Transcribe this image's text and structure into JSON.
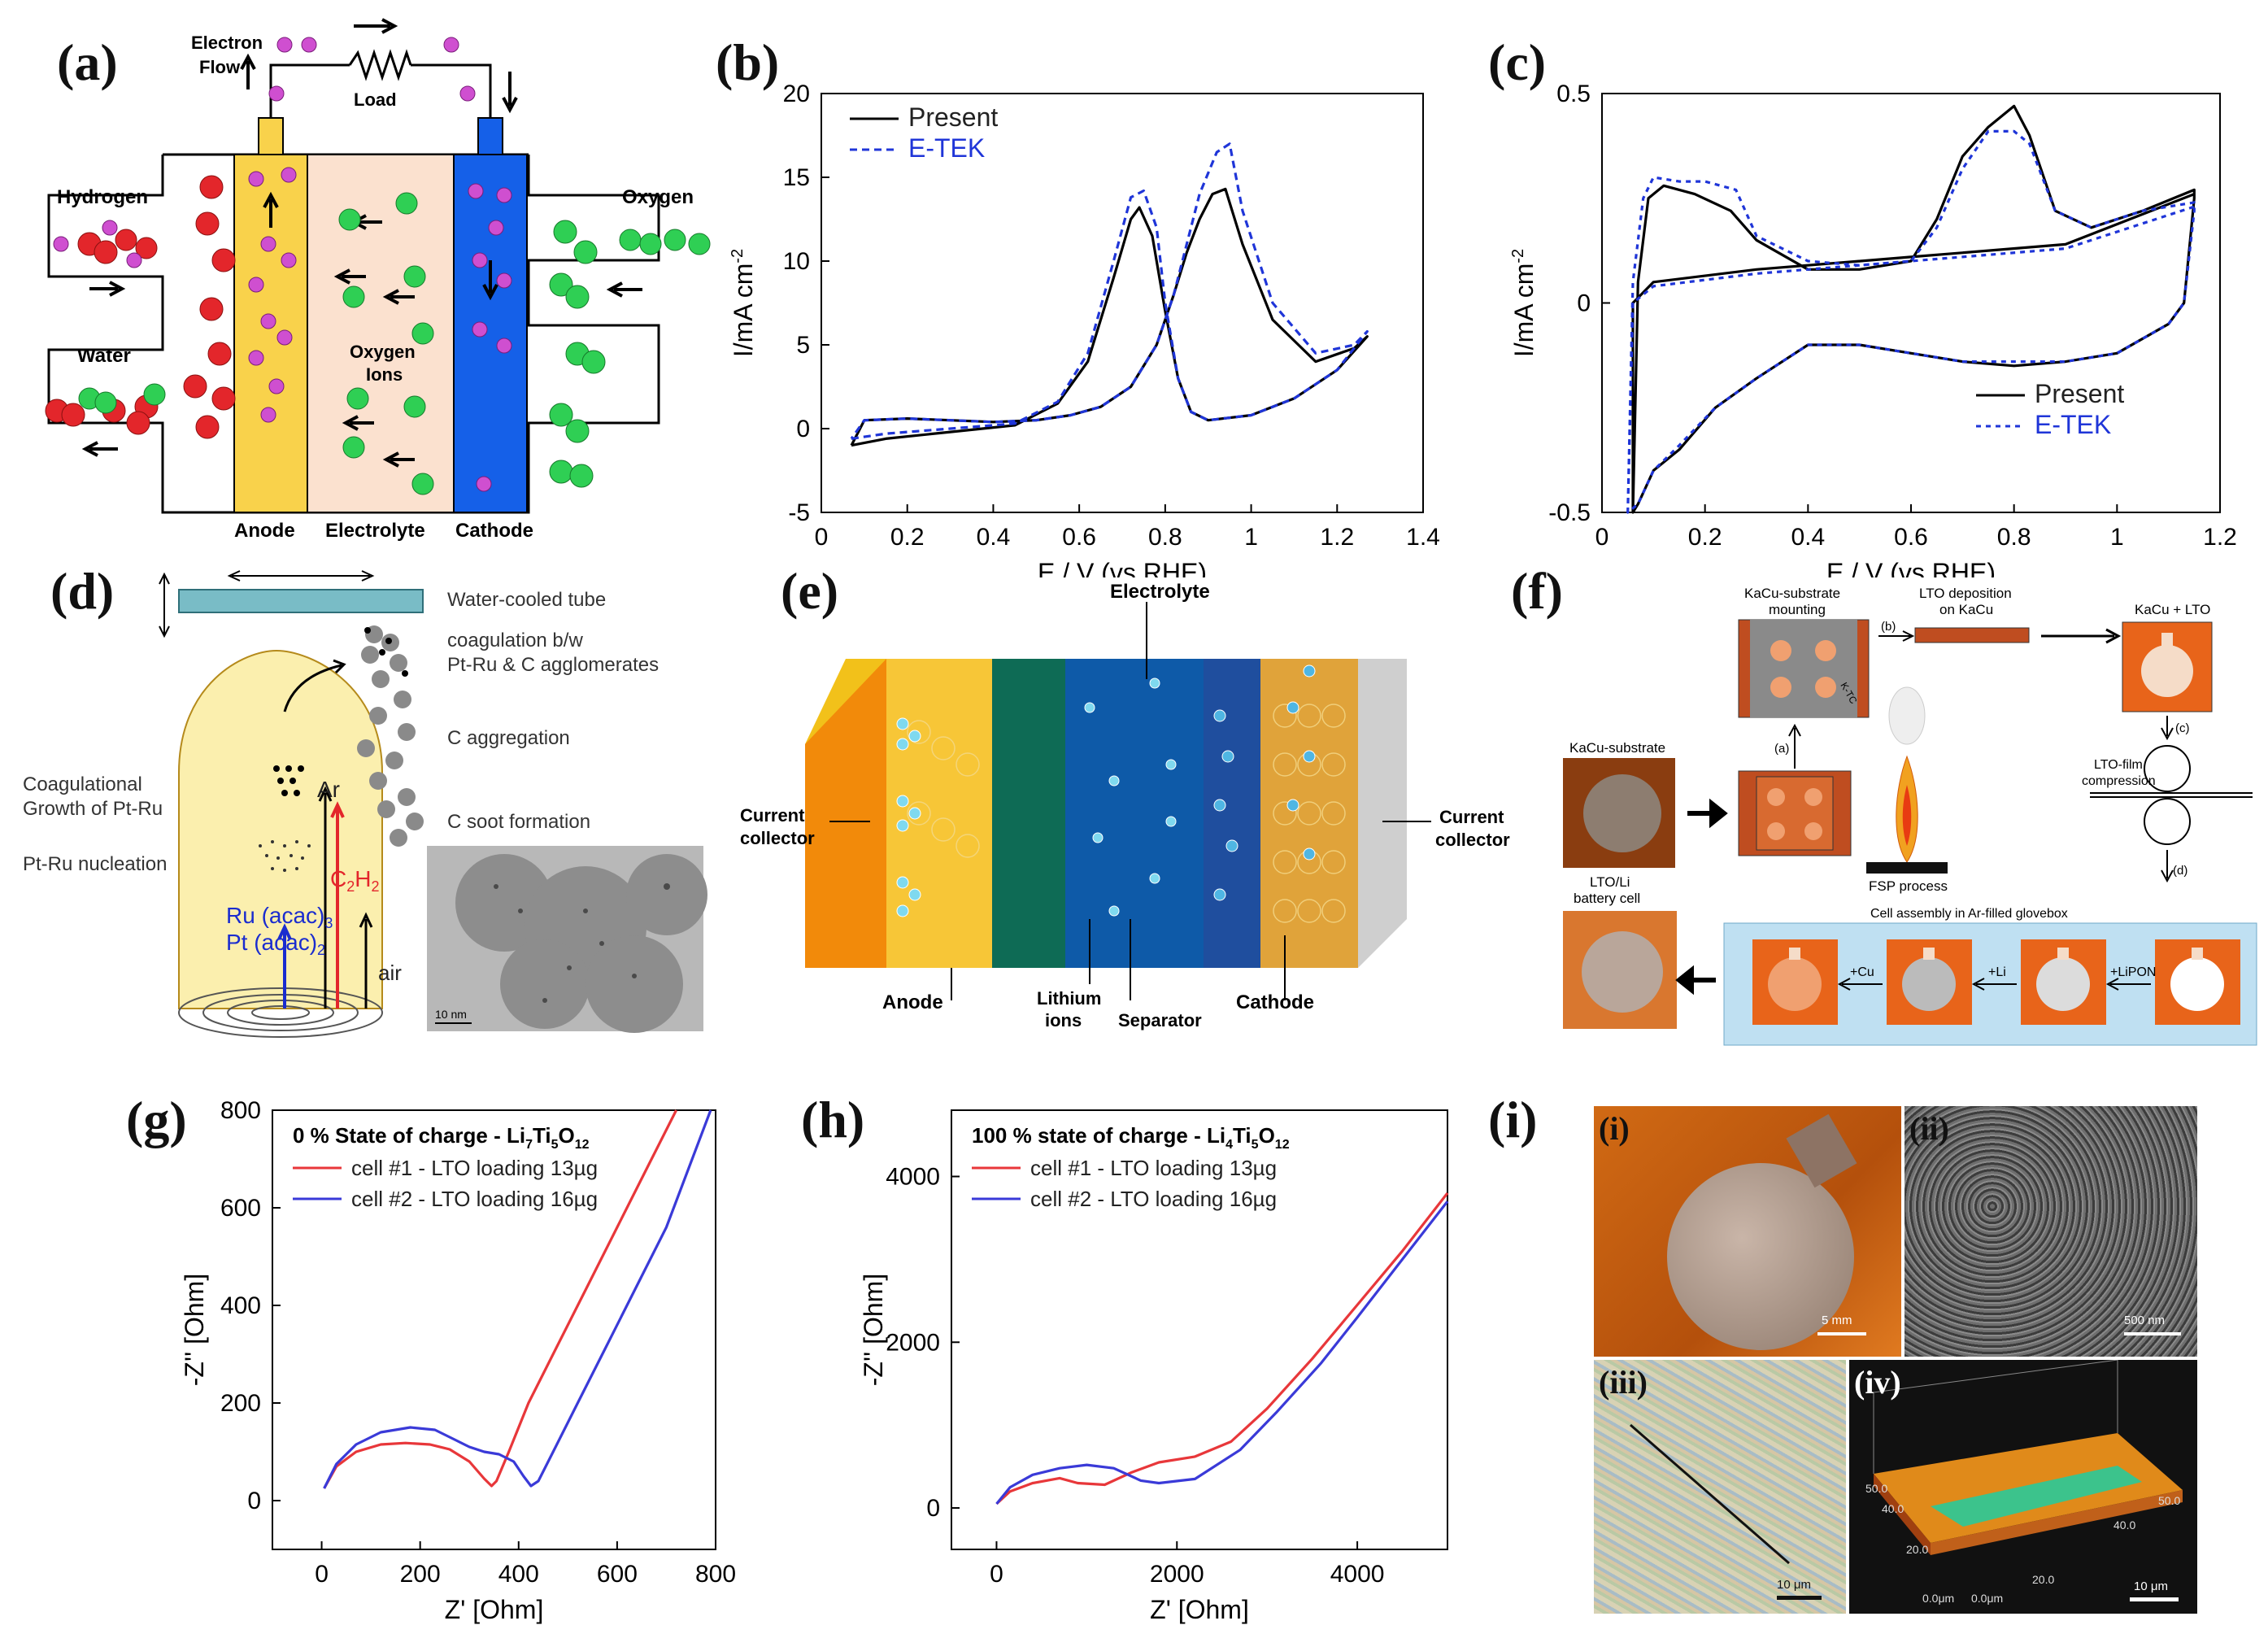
{
  "labels": {
    "a": "(a)",
    "b": "(b)",
    "c": "(c)",
    "d": "(d)",
    "e": "(e)",
    "f": "(f)",
    "g": "(g)",
    "h": "(h)",
    "i": "(i)"
  },
  "panel_a": {
    "electron_flow_1": "Electron",
    "electron_flow_2": "Flow",
    "load": "Load",
    "hydrogen": "Hydrogen",
    "oxygen": "Oxygen",
    "water": "Water",
    "oxygen_ions_1": "Oxygen",
    "oxygen_ions_2": "Ions",
    "anode": "Anode",
    "electrolyte": "Electrolyte",
    "cathode": "Cathode",
    "colors": {
      "anode": "#f9d24b",
      "electrolyte": "#fbe1cf",
      "cathode": "#1560e8",
      "h2": "#e3262b",
      "o2": "#2fcf54",
      "ion": "#cf4fd0"
    }
  },
  "panel_d": {
    "tube": "Water-cooled tube",
    "coag1": "coagulation b/w",
    "coag2": "Pt-Ru & C agglomerates",
    "c_agg": "C aggregation",
    "c_soot": "C soot formation",
    "growth1": "Coagulational",
    "growth2": "Growth of Pt-Ru",
    "nucleation": "Pt-Ru nucleation",
    "ar": "Ar",
    "c2h2": "C",
    "c2h2_sub": "2",
    "c2h2_h": "H",
    "c2h2_sub2": "2",
    "ru": "Ru (acac)",
    "ru_sub": "3",
    "pt": "Pt (acac)",
    "pt_sub": "2",
    "air": "air",
    "scale": "10 nm"
  },
  "panel_e": {
    "electrolyte": "Electrolyte",
    "cc_left_1": "Current",
    "cc_left_2": "collector",
    "cc_right_1": "Current",
    "cc_right_2": "collector",
    "anode": "Anode",
    "li_ions_1": "Lithium",
    "li_ions_2": "ions",
    "separator": "Separator",
    "cathode": "Cathode"
  },
  "panel_f": {
    "mounting_1": "KaCu-substrate",
    "mounting_2": "mounting",
    "lto_dep_1": "LTO deposition",
    "lto_dep_2": "on KaCu",
    "kacu_lto": "KaCu + LTO",
    "kacu_sub": "KaCu-substrate",
    "step_a": "(a)",
    "step_b": "(b)",
    "step_c": "(c)",
    "step_d": "(d)",
    "compress_1": "LTO-film",
    "compress_2": "compression",
    "fsp": "FSP process",
    "cell_1": "LTO/Li",
    "cell_2": "battery cell",
    "glovebox": "Cell assembly in Ar-filled glovebox",
    "cu": "+Cu",
    "li": "+Li",
    "lipon": "+LiPON",
    "tc": "K-TC"
  },
  "panel_i": {
    "sub_i": "(i)",
    "sub_ii": "(ii)",
    "sub_iii": "(iii)",
    "sub_iv": "(iv)",
    "scale_i": "5 mm",
    "scale_ii": "500 nm",
    "scale_iii": "10 μm",
    "scale_iv": "10 μm",
    "axis_iv_1": "50.0",
    "axis_iv_2": "40.0",
    "axis_iv_3": "20.0",
    "axis_iv_4": "0.0μm",
    "axis_iv_5": "0.0μm",
    "axis_iv_6": "20.0",
    "axis_iv_7": "40.0",
    "axis_iv_8": "50.0"
  },
  "chart_data": [
    {
      "id": "b",
      "type": "line",
      "title": "",
      "xlabel": "E / V (vs RHE)",
      "ylabel": "I/mA cm",
      "ylabel_sup": "-2",
      "xlim": [
        0,
        1.4
      ],
      "ylim": [
        -5,
        20
      ],
      "xticks": [
        0,
        0.2,
        0.4,
        0.6,
        0.8,
        1,
        1.2,
        1.4
      ],
      "xtick_labels": [
        "0",
        "0.2",
        "0.4",
        "0.6",
        "0.8",
        "1",
        "1.2",
        "1.4"
      ],
      "yticks": [
        -5,
        0,
        5,
        10,
        15,
        20
      ],
      "ytick_labels": [
        "-5",
        "0",
        "5",
        "10",
        "15",
        "20"
      ],
      "legend": "top-left",
      "series": [
        {
          "name": "Present",
          "color": "#000000",
          "dash": "",
          "x": [
            0.07,
            0.15,
            0.3,
            0.45,
            0.55,
            0.62,
            0.68,
            0.72,
            0.74,
            0.77,
            0.8,
            0.83,
            0.86,
            0.9,
            1.0,
            1.1,
            1.2,
            1.27,
            1.24,
            1.15,
            1.05,
            0.98,
            0.94,
            0.91,
            0.88,
            0.85,
            0.82,
            0.78,
            0.72,
            0.65,
            0.58,
            0.5,
            0.4,
            0.3,
            0.2,
            0.1,
            0.07
          ],
          "y": [
            -1,
            -0.6,
            -0.2,
            0.2,
            1.5,
            4,
            9,
            12.5,
            13.2,
            11.5,
            7,
            3,
            1,
            0.5,
            0.8,
            1.8,
            3.5,
            5.5,
            4.8,
            4,
            6.5,
            11,
            14.3,
            14,
            12.5,
            10.5,
            8,
            5,
            2.5,
            1.3,
            0.8,
            0.5,
            0.4,
            0.5,
            0.6,
            0.5,
            -1
          ]
        },
        {
          "name": "E-TEK",
          "color": "#1f35d8",
          "dash": "9,6",
          "x": [
            0.07,
            0.15,
            0.3,
            0.45,
            0.55,
            0.62,
            0.68,
            0.72,
            0.75,
            0.78,
            0.8,
            0.83,
            0.86,
            0.9,
            1.0,
            1.1,
            1.2,
            1.27,
            1.24,
            1.15,
            1.05,
            0.98,
            0.95,
            0.92,
            0.88,
            0.85,
            0.82,
            0.78,
            0.72,
            0.65,
            0.58,
            0.5,
            0.4,
            0.3,
            0.2,
            0.1,
            0.07
          ],
          "y": [
            -0.6,
            -0.3,
            0,
            0.3,
            1.6,
            4.5,
            10,
            13.8,
            14.2,
            12,
            7.5,
            3,
            1,
            0.5,
            0.8,
            1.8,
            3.5,
            5.8,
            5,
            4.5,
            7.5,
            13,
            17,
            16.5,
            14,
            11,
            8,
            5,
            2.5,
            1.3,
            0.8,
            0.5,
            0.4,
            0.5,
            0.6,
            0.5,
            -0.6
          ]
        }
      ]
    },
    {
      "id": "c",
      "type": "line",
      "title": "",
      "xlabel": "E / V (vs RHE)",
      "ylabel": "I/mA cm",
      "ylabel_sup": "-2",
      "xlim": [
        0,
        1.2
      ],
      "ylim": [
        -0.5,
        0.5
      ],
      "xticks": [
        0,
        0.2,
        0.4,
        0.6,
        0.8,
        1,
        1.2
      ],
      "xtick_labels": [
        "0",
        "0.2",
        "0.4",
        "0.6",
        "0.8",
        "1",
        "1.2"
      ],
      "yticks": [
        -0.5,
        0,
        0.5
      ],
      "ytick_labels": [
        "-0.5",
        "0",
        "0.5"
      ],
      "legend": "bottom-right",
      "series": [
        {
          "name": "Present",
          "color": "#000000",
          "dash": "",
          "x": [
            0.06,
            0.07,
            0.09,
            0.12,
            0.18,
            0.25,
            0.3,
            0.4,
            0.5,
            0.6,
            0.65,
            0.7,
            0.75,
            0.8,
            0.83,
            0.88,
            0.95,
            1.05,
            1.15,
            1.15,
            1.13,
            1.1,
            1.0,
            0.9,
            0.8,
            0.7,
            0.6,
            0.5,
            0.4,
            0.3,
            0.22,
            0.15,
            0.1,
            0.07,
            0.06,
            0.06,
            0.1,
            0.3,
            0.6,
            0.9,
            1.15
          ],
          "y": [
            -0.5,
            0.05,
            0.25,
            0.28,
            0.26,
            0.22,
            0.15,
            0.08,
            0.08,
            0.1,
            0.2,
            0.35,
            0.42,
            0.47,
            0.4,
            0.22,
            0.18,
            0.22,
            0.27,
            0.25,
            0.0,
            -0.05,
            -0.12,
            -0.14,
            -0.15,
            -0.14,
            -0.12,
            -0.1,
            -0.1,
            -0.18,
            -0.25,
            -0.35,
            -0.4,
            -0.48,
            -0.5,
            0.0,
            0.05,
            0.08,
            0.11,
            0.14,
            0.26
          ]
        },
        {
          "name": "E-TEK",
          "color": "#1f35d8",
          "dash": "6,6",
          "x": [
            0.05,
            0.06,
            0.08,
            0.1,
            0.15,
            0.2,
            0.26,
            0.3,
            0.4,
            0.5,
            0.6,
            0.65,
            0.7,
            0.75,
            0.8,
            0.83,
            0.88,
            0.95,
            1.05,
            1.15,
            1.15,
            1.13,
            1.1,
            1.0,
            0.9,
            0.8,
            0.7,
            0.6,
            0.5,
            0.4,
            0.3,
            0.22,
            0.15,
            0.1,
            0.07,
            0.05,
            0.06,
            0.1,
            0.3,
            0.6,
            0.9,
            1.15
          ],
          "y": [
            -0.5,
            0.05,
            0.25,
            0.3,
            0.29,
            0.29,
            0.27,
            0.16,
            0.1,
            0.09,
            0.1,
            0.18,
            0.32,
            0.41,
            0.41,
            0.38,
            0.22,
            0.18,
            0.22,
            0.24,
            0.22,
            0.0,
            -0.05,
            -0.12,
            -0.14,
            -0.14,
            -0.14,
            -0.12,
            -0.1,
            -0.1,
            -0.18,
            -0.25,
            -0.34,
            -0.4,
            -0.48,
            -0.5,
            0.0,
            0.04,
            0.07,
            0.1,
            0.13,
            0.23
          ]
        }
      ]
    },
    {
      "id": "g",
      "type": "line",
      "title": "0 % State of charge - Li",
      "title_sub1": "7",
      "title_mid": "Ti",
      "title_sub2": "5",
      "title_end": "O",
      "title_sub3": "12",
      "xlabel": "Z' [Ohm]",
      "ylabel": "-Z'' [Ohm]",
      "xlim": [
        -100,
        800
      ],
      "ylim": [
        -100,
        800
      ],
      "xticks": [
        0,
        200,
        400,
        600,
        800
      ],
      "xtick_labels": [
        "0",
        "200",
        "400",
        "600",
        "800"
      ],
      "yticks": [
        0,
        200,
        400,
        600,
        800
      ],
      "ytick_labels": [
        "0",
        "200",
        "400",
        "600",
        "800"
      ],
      "legend": "top-left",
      "series": [
        {
          "name": "cell #1 - LTO loading 13µg",
          "color": "#e8373a",
          "dash": "",
          "x": [
            5,
            30,
            70,
            120,
            170,
            220,
            260,
            300,
            330,
            345,
            355,
            380,
            420,
            480,
            540,
            600,
            660,
            720
          ],
          "y": [
            25,
            70,
            100,
            115,
            118,
            115,
            105,
            80,
            45,
            30,
            40,
            100,
            200,
            320,
            440,
            560,
            680,
            800
          ]
        },
        {
          "name": "cell #2 - LTO loading 16µg",
          "color": "#3a3ad8",
          "dash": "",
          "x": [
            5,
            30,
            70,
            120,
            180,
            230,
            270,
            300,
            330,
            360,
            390,
            410,
            425,
            440,
            470,
            520,
            580,
            640,
            700,
            790
          ],
          "y": [
            25,
            75,
            115,
            140,
            150,
            145,
            125,
            110,
            100,
            95,
            80,
            50,
            30,
            40,
            100,
            200,
            320,
            440,
            560,
            800
          ]
        }
      ]
    },
    {
      "id": "h",
      "type": "line",
      "title": "100 % state of charge - Li",
      "title_sub1": "4",
      "title_mid": "Ti",
      "title_sub2": "5",
      "title_end": "O",
      "title_sub3": "12",
      "xlabel": "Z' [Ohm]",
      "ylabel": "-Z'' [Ohm]",
      "xlim": [
        -500,
        5000
      ],
      "ylim": [
        -500,
        4800
      ],
      "xticks": [
        0,
        2000,
        4000
      ],
      "xtick_labels": [
        "0",
        "2000",
        "4000"
      ],
      "yticks": [
        0,
        2000,
        4000
      ],
      "ytick_labels": [
        "0",
        "2000",
        "4000"
      ],
      "legend": "top-left",
      "series": [
        {
          "name": "cell #1 - LTO loading 13µg",
          "color": "#e8373a",
          "dash": "",
          "x": [
            0,
            150,
            400,
            700,
            900,
            1200,
            1500,
            1800,
            2200,
            2600,
            3000,
            3500,
            4000,
            4500,
            5000
          ],
          "y": [
            50,
            200,
            300,
            360,
            300,
            280,
            430,
            550,
            620,
            800,
            1200,
            1800,
            2450,
            3100,
            3800
          ]
        },
        {
          "name": "cell #2 - LTO loading 16µg",
          "color": "#3a3ad8",
          "dash": "",
          "x": [
            0,
            150,
            400,
            700,
            1000,
            1300,
            1600,
            1800,
            2200,
            2700,
            3100,
            3600,
            4000,
            4500,
            5000
          ],
          "y": [
            50,
            250,
            400,
            480,
            520,
            480,
            330,
            300,
            350,
            700,
            1150,
            1750,
            2300,
            3000,
            3700
          ]
        }
      ]
    }
  ]
}
